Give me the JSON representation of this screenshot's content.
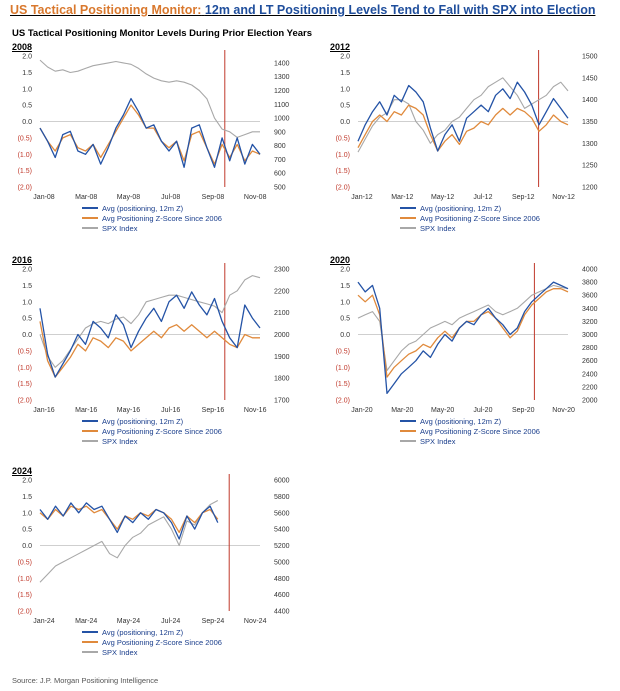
{
  "header": {
    "title_part1": "US Tactical Positioning Monitor:",
    "title_part2": "12m and LT Positioning Levels Tend to Fall with SPX into Election",
    "subtitle": "US Tactical Positioning Monitor Levels During Prior Election Years"
  },
  "source": "Source: J.P. Morgan Positioning Intelligence",
  "colors": {
    "avg": "#2453a6",
    "ltz": "#e08a3c",
    "spx": "#a8a8a8",
    "election_line": "#c0392b",
    "negative_tick": "#c0392b"
  },
  "chart_data": [
    {
      "type": "line",
      "year": "2008",
      "x_ticks": [
        "Jan-08",
        "Mar-08",
        "May-08",
        "Jul-08",
        "Sep-08",
        "Nov-08"
      ],
      "left_ticks": [
        "2.0",
        "1.5",
        "1.0",
        "0.5",
        "0.0",
        "(0.5)",
        "(1.0)",
        "(1.5)",
        "(2.0)"
      ],
      "left_ylim": [
        -2,
        2
      ],
      "right_ticks": [
        "1400",
        "1300",
        "1200",
        "1100",
        "1000",
        "900",
        "800",
        "700",
        "600",
        "500"
      ],
      "right_ylim": [
        500,
        1450
      ],
      "election_x": 0.84,
      "series": [
        {
          "name": "Avg (positioning, 12m Z)",
          "axis": "left",
          "values": [
            -0.2,
            -0.6,
            -1.1,
            -0.4,
            -0.3,
            -0.9,
            -1.0,
            -0.7,
            -1.3,
            -0.8,
            -0.2,
            0.2,
            0.7,
            0.3,
            -0.2,
            -0.1,
            -0.6,
            -0.9,
            -0.6,
            -1.4,
            -0.2,
            -0.1,
            -0.8,
            -1.4,
            -0.5,
            -1.2,
            -0.5,
            -1.3,
            -0.7,
            -1.0
          ]
        },
        {
          "name": "Avg Positioning Z-Score Since 2006",
          "axis": "left",
          "values": [
            -0.2,
            -0.6,
            -0.9,
            -0.5,
            -0.4,
            -0.8,
            -0.9,
            -0.7,
            -1.1,
            -0.7,
            -0.3,
            0.1,
            0.5,
            0.2,
            -0.2,
            -0.2,
            -0.6,
            -0.8,
            -0.6,
            -1.2,
            -0.4,
            -0.3,
            -0.8,
            -1.3,
            -0.7,
            -1.1,
            -0.7,
            -1.2,
            -0.9,
            -1.0
          ]
        },
        {
          "name": "SPX Index",
          "axis": "right",
          "values": [
            1420,
            1370,
            1340,
            1350,
            1330,
            1340,
            1360,
            1380,
            1390,
            1400,
            1410,
            1400,
            1390,
            1360,
            1320,
            1290,
            1270,
            1260,
            1270,
            1260,
            1240,
            1200,
            1140,
            1000,
            920,
            900,
            860,
            880,
            900,
            900
          ]
        }
      ]
    },
    {
      "type": "line",
      "year": "2012",
      "x_ticks": [
        "Jan-12",
        "Mar-12",
        "May-12",
        "Jul-12",
        "Sep-12",
        "Nov-12"
      ],
      "left_ticks": [
        "2.0",
        "1.5",
        "1.0",
        "0.5",
        "0.0",
        "(0.5)",
        "(1.0)",
        "(1.5)",
        "(2.0)"
      ],
      "left_ylim": [
        -2,
        2
      ],
      "right_ticks": [
        "1500",
        "1450",
        "1400",
        "1350",
        "1300",
        "1250",
        "1200"
      ],
      "right_ylim": [
        1200,
        1500
      ],
      "election_x": 0.86,
      "series": [
        {
          "name": "Avg (positioning, 12m Z)",
          "axis": "left",
          "values": [
            -0.6,
            -0.1,
            0.3,
            0.6,
            0.2,
            0.8,
            0.6,
            1.1,
            0.9,
            0.6,
            -0.2,
            -0.9,
            -0.4,
            -0.1,
            -0.6,
            0.1,
            0.3,
            0.5,
            0.3,
            0.8,
            1.0,
            0.7,
            1.2,
            0.9,
            0.5,
            -0.1,
            0.3,
            0.7,
            0.4,
            0.1
          ]
        },
        {
          "name": "Avg Positioning Z-Score Since 2006",
          "axis": "left",
          "values": [
            -0.8,
            -0.4,
            0.0,
            0.2,
            0.0,
            0.3,
            0.2,
            0.5,
            0.4,
            0.2,
            -0.4,
            -0.9,
            -0.6,
            -0.4,
            -0.7,
            -0.3,
            -0.2,
            0.0,
            -0.1,
            0.2,
            0.4,
            0.2,
            0.4,
            0.3,
            0.1,
            -0.3,
            -0.1,
            0.2,
            0.0,
            -0.1
          ]
        },
        {
          "name": "SPX Index",
          "axis": "right",
          "values": [
            1280,
            1310,
            1340,
            1360,
            1370,
            1400,
            1400,
            1390,
            1350,
            1330,
            1300,
            1320,
            1330,
            1350,
            1360,
            1380,
            1400,
            1410,
            1430,
            1440,
            1450,
            1430,
            1410,
            1380,
            1390,
            1400,
            1410,
            1430,
            1440,
            1420
          ]
        }
      ]
    },
    {
      "type": "line",
      "year": "2016",
      "x_ticks": [
        "Jan-16",
        "Mar-16",
        "May-16",
        "Jul-16",
        "Sep-16",
        "Nov-16"
      ],
      "left_ticks": [
        "2.0",
        "1.5",
        "1.0",
        "0.5",
        "0.0",
        "(0.5)",
        "(1.0)",
        "(1.5)",
        "(2.0)"
      ],
      "left_ylim": [
        -2,
        2
      ],
      "right_ticks": [
        "2300",
        "2200",
        "2100",
        "2000",
        "1900",
        "1800",
        "1700"
      ],
      "right_ylim": [
        1700,
        2300
      ],
      "election_x": 0.84,
      "series": [
        {
          "name": "Avg (positioning, 12m Z)",
          "axis": "left",
          "values": [
            0.8,
            -0.6,
            -1.3,
            -0.9,
            -0.5,
            0.0,
            -0.3,
            0.4,
            0.2,
            -0.1,
            0.6,
            0.3,
            -0.4,
            0.1,
            0.5,
            0.8,
            0.4,
            1.0,
            1.2,
            0.8,
            1.3,
            0.9,
            0.6,
            1.1,
            0.4,
            -0.1,
            -0.4,
            0.9,
            0.5,
            0.2
          ]
        },
        {
          "name": "Avg Positioning Z-Score Since 2006",
          "axis": "left",
          "values": [
            0.4,
            -0.8,
            -1.3,
            -1.0,
            -0.7,
            -0.3,
            -0.5,
            -0.1,
            -0.2,
            -0.4,
            -0.1,
            -0.2,
            -0.5,
            -0.3,
            -0.1,
            0.1,
            -0.1,
            0.2,
            0.3,
            0.1,
            0.3,
            0.1,
            -0.1,
            0.1,
            -0.1,
            -0.3,
            -0.4,
            0.0,
            -0.1,
            -0.1
          ]
        },
        {
          "name": "SPX Index",
          "axis": "right",
          "values": [
            2000,
            1900,
            1850,
            1880,
            1930,
            1980,
            2030,
            2050,
            2060,
            2050,
            2070,
            2080,
            2050,
            2090,
            2150,
            2160,
            2170,
            2180,
            2180,
            2170,
            2160,
            2150,
            2140,
            2130,
            2100,
            2180,
            2200,
            2250,
            2270,
            2260
          ]
        }
      ]
    },
    {
      "type": "line",
      "year": "2020",
      "x_ticks": [
        "Jan-20",
        "Mar-20",
        "May-20",
        "Jul-20",
        "Sep-20",
        "Nov-20"
      ],
      "left_ticks": [
        "2.0",
        "1.5",
        "1.0",
        "0.5",
        "0.0",
        "(0.5)",
        "(1.0)",
        "(1.5)",
        "(2.0)"
      ],
      "left_ylim": [
        -2,
        2
      ],
      "right_ticks": [
        "4000",
        "3800",
        "3600",
        "3400",
        "3200",
        "3000",
        "2800",
        "2600",
        "2400",
        "2200",
        "2000"
      ],
      "right_ylim": [
        2000,
        4000
      ],
      "election_x": 0.84,
      "series": [
        {
          "name": "Avg (positioning, 12m Z)",
          "axis": "left",
          "values": [
            1.6,
            1.3,
            1.5,
            0.8,
            -1.8,
            -1.5,
            -1.2,
            -1.0,
            -0.8,
            -0.5,
            -0.7,
            -0.3,
            0.0,
            -0.2,
            0.2,
            0.4,
            0.3,
            0.6,
            0.8,
            0.5,
            0.3,
            0.0,
            0.2,
            0.7,
            1.0,
            1.2,
            1.4,
            1.6,
            1.5,
            1.4
          ]
        },
        {
          "name": "Avg Positioning Z-Score Since 2006",
          "axis": "left",
          "values": [
            1.2,
            1.0,
            1.2,
            0.6,
            -1.3,
            -1.0,
            -0.8,
            -0.6,
            -0.5,
            -0.3,
            -0.4,
            -0.1,
            0.1,
            -0.1,
            0.2,
            0.4,
            0.4,
            0.6,
            0.7,
            0.5,
            0.2,
            -0.1,
            0.1,
            0.6,
            0.9,
            1.1,
            1.3,
            1.4,
            1.4,
            1.3
          ]
        },
        {
          "name": "SPX Index",
          "axis": "right",
          "values": [
            3250,
            3300,
            3350,
            3200,
            2450,
            2600,
            2750,
            2850,
            2900,
            3000,
            3100,
            3150,
            3200,
            3150,
            3250,
            3300,
            3350,
            3400,
            3450,
            3350,
            3300,
            3350,
            3400,
            3500,
            3600,
            3650,
            3700,
            3750,
            3720,
            3700
          ]
        }
      ]
    },
    {
      "type": "line",
      "year": "2024",
      "x_ticks": [
        "Jan-24",
        "Mar-24",
        "May-24",
        "Jul-24",
        "Sep-24",
        "Nov-24"
      ],
      "left_ticks": [
        "2.0",
        "1.5",
        "1.0",
        "0.5",
        "0.0",
        "(0.5)",
        "(1.0)",
        "(1.5)",
        "(2.0)"
      ],
      "left_ylim": [
        -2,
        2
      ],
      "right_ticks": [
        "6000",
        "5800",
        "5600",
        "5400",
        "5200",
        "5000",
        "4800",
        "4600",
        "4400"
      ],
      "right_ylim": [
        4400,
        6000
      ],
      "election_x": 0.86,
      "series": [
        {
          "name": "Avg (positioning, 12m Z)",
          "axis": "left",
          "values": [
            1.1,
            0.8,
            1.2,
            0.9,
            1.3,
            1.0,
            1.3,
            1.1,
            1.2,
            0.8,
            0.4,
            0.9,
            0.7,
            1.0,
            0.8,
            1.1,
            1.0,
            0.7,
            0.2,
            0.9,
            0.5,
            1.0,
            1.2,
            0.7
          ]
        },
        {
          "name": "Avg Positioning Z-Score Since 2006",
          "axis": "left",
          "values": [
            1.0,
            0.8,
            1.1,
            0.9,
            1.2,
            1.1,
            1.2,
            1.0,
            1.1,
            0.8,
            0.5,
            0.9,
            0.8,
            1.0,
            0.9,
            1.1,
            1.0,
            0.8,
            0.4,
            0.9,
            0.7,
            1.0,
            1.1,
            0.8
          ]
        },
        {
          "name": "SPX Index",
          "axis": "right",
          "values": [
            4750,
            4850,
            4950,
            5000,
            5050,
            5100,
            5150,
            5200,
            5250,
            5100,
            5050,
            5200,
            5300,
            5350,
            5450,
            5500,
            5550,
            5400,
            5200,
            5500,
            5450,
            5600,
            5700,
            5750
          ]
        }
      ]
    }
  ]
}
